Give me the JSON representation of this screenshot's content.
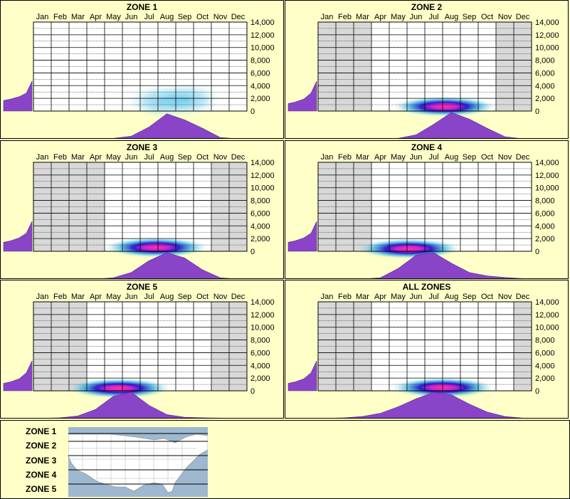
{
  "chart_data": [
    {
      "type": "heatmap",
      "title": "ZONE 1",
      "months": [
        "Jan",
        "Feb",
        "Mar",
        "Apr",
        "May",
        "Jun",
        "Jul",
        "Aug",
        "Sep",
        "Oct",
        "Nov",
        "Dec"
      ],
      "yticks": [
        "14,000",
        "12,000",
        "10,000",
        "8,000",
        "6,000",
        "4,000",
        "2,000",
        "0"
      ],
      "ylim": [
        0,
        14000
      ],
      "active_months": [
        0,
        1,
        2,
        3,
        4,
        5,
        6,
        7,
        8,
        9,
        10,
        11
      ],
      "elevation_profile": [
        0.35,
        0.4,
        0.48,
        0.6,
        1.0
      ],
      "month_density": [
        0,
        0,
        0,
        0,
        0.02,
        0.1,
        0.45,
        0.95,
        0.72,
        0.4,
        0.05,
        0
      ],
      "heat_blobs": [
        {
          "month": 7.2,
          "elev": 1500,
          "intensity": 0.35
        },
        {
          "month": 8.6,
          "elev": 1800,
          "intensity": 0.3
        }
      ]
    },
    {
      "type": "heatmap",
      "title": "ZONE 2",
      "months": [
        "Jan",
        "Feb",
        "Mar",
        "Apr",
        "May",
        "Jun",
        "Jul",
        "Aug",
        "Sep",
        "Oct",
        "Nov",
        "Dec"
      ],
      "yticks": [
        "14,000",
        "12,000",
        "10,000",
        "8,000",
        "6,000",
        "4,000",
        "2,000",
        "0"
      ],
      "ylim": [
        0,
        14000
      ],
      "active_months": [
        3,
        4,
        5,
        6,
        7,
        8,
        9
      ],
      "elevation_profile": [
        0.25,
        0.3,
        0.4,
        0.6,
        1.0
      ],
      "month_density": [
        0,
        0,
        0,
        0,
        0.02,
        0.15,
        0.55,
        1.0,
        0.75,
        0.4,
        0.08,
        0
      ],
      "heat_blobs": [
        {
          "month": 7.1,
          "elev": 700,
          "intensity": 1.0
        }
      ]
    },
    {
      "type": "heatmap",
      "title": "ZONE 3",
      "months": [
        "Jan",
        "Feb",
        "Mar",
        "Apr",
        "May",
        "Jun",
        "Jul",
        "Aug",
        "Sep",
        "Oct",
        "Nov",
        "Dec"
      ],
      "yticks": [
        "14,000",
        "12,000",
        "10,000",
        "8,000",
        "6,000",
        "4,000",
        "2,000",
        "0"
      ],
      "ylim": [
        0,
        14000
      ],
      "active_months": [
        4,
        5,
        6,
        7,
        8,
        9
      ],
      "elevation_profile": [
        0.3,
        0.35,
        0.45,
        0.6,
        1.0
      ],
      "month_density": [
        0,
        0,
        0,
        0,
        0.05,
        0.25,
        0.7,
        1.0,
        0.8,
        0.35,
        0.05,
        0
      ],
      "heat_blobs": [
        {
          "month": 6.9,
          "elev": 600,
          "intensity": 1.0
        }
      ]
    },
    {
      "type": "heatmap",
      "title": "ZONE 4",
      "months": [
        "Jan",
        "Feb",
        "Mar",
        "Apr",
        "May",
        "Jun",
        "Jul",
        "Aug",
        "Sep",
        "Oct",
        "Nov",
        "Dec"
      ],
      "yticks": [
        "14,000",
        "12,000",
        "10,000",
        "8,000",
        "6,000",
        "4,000",
        "2,000",
        "0"
      ],
      "ylim": [
        0,
        14000
      ],
      "active_months": [
        3,
        4,
        5,
        6,
        7,
        8,
        9,
        10,
        11
      ],
      "elevation_profile": [
        0.3,
        0.35,
        0.45,
        0.6,
        1.0
      ],
      "month_density": [
        0,
        0,
        0,
        0.05,
        0.4,
        0.9,
        1.0,
        0.6,
        0.25,
        0.12,
        0.06,
        0.02
      ],
      "heat_blobs": [
        {
          "month": 5.1,
          "elev": 400,
          "intensity": 1.0
        }
      ]
    },
    {
      "type": "heatmap",
      "title": "ZONE 5",
      "months": [
        "Jan",
        "Feb",
        "Mar",
        "Apr",
        "May",
        "Jun",
        "Jul",
        "Aug",
        "Sep",
        "Oct",
        "Nov",
        "Dec"
      ],
      "yticks": [
        "14,000",
        "12,000",
        "10,000",
        "8,000",
        "6,000",
        "4,000",
        "2,000",
        "0"
      ],
      "ylim": [
        0,
        14000
      ],
      "active_months": [
        3,
        4,
        5,
        6,
        7,
        8,
        9
      ],
      "elevation_profile": [
        0.25,
        0.3,
        0.4,
        0.6,
        1.0
      ],
      "month_density": [
        0.01,
        0.03,
        0.1,
        0.35,
        0.85,
        1.0,
        0.5,
        0.15,
        0.05,
        0.03,
        0.02,
        0.01
      ],
      "heat_blobs": [
        {
          "month": 4.8,
          "elev": 400,
          "intensity": 1.0
        }
      ]
    },
    {
      "type": "heatmap",
      "title": "ALL ZONES",
      "months": [
        "Jan",
        "Feb",
        "Mar",
        "Apr",
        "May",
        "Jun",
        "Jul",
        "Aug",
        "Sep",
        "Oct",
        "Nov",
        "Dec"
      ],
      "yticks": [
        "14,000",
        "12,000",
        "10,000",
        "8,000",
        "6,000",
        "4,000",
        "2,000",
        "0"
      ],
      "ylim": [
        0,
        14000
      ],
      "active_months": [
        3,
        4,
        5,
        6,
        7,
        8,
        9,
        10
      ],
      "elevation_profile": [
        0.25,
        0.3,
        0.4,
        0.6,
        1.0
      ],
      "month_density": [
        0.01,
        0.03,
        0.08,
        0.2,
        0.45,
        0.75,
        1.0,
        0.9,
        0.55,
        0.25,
        0.08,
        0.02
      ],
      "heat_blobs": [
        {
          "month": 7.0,
          "elev": 500,
          "intensity": 1.0
        }
      ]
    }
  ],
  "legend": {
    "zones": [
      "ZONE 1",
      "ZONE 2",
      "ZONE 3",
      "ZONE 4",
      "ZONE 5"
    ]
  },
  "colors": {
    "background": "#ffffc8",
    "density": "#8a44c8",
    "inactive": "#d8d8d8",
    "grid": "#000000"
  }
}
